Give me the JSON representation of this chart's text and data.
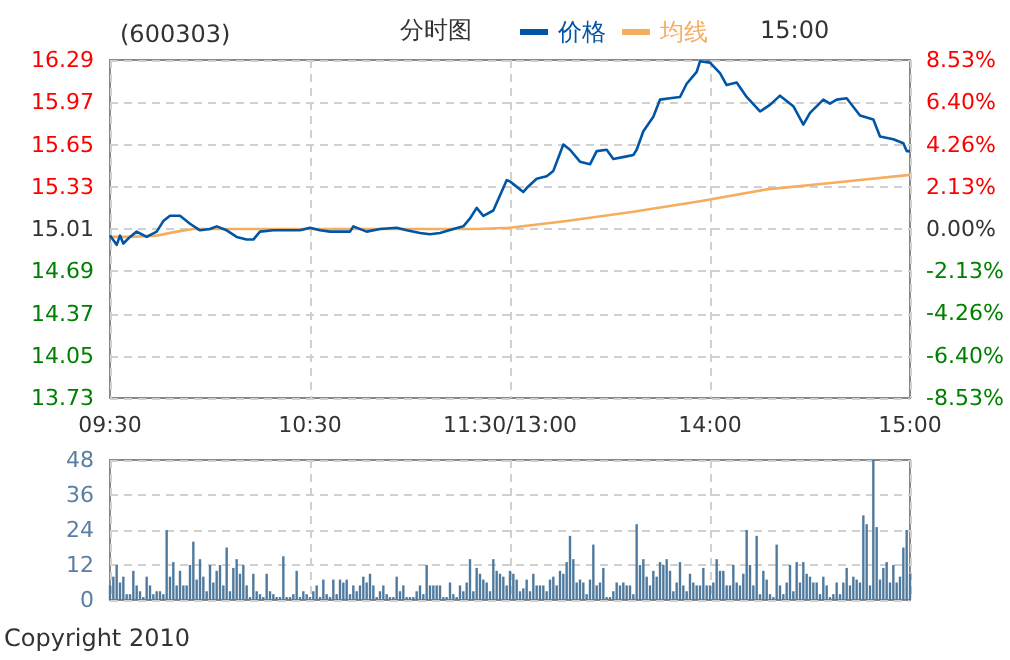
{
  "chart_data": [
    {
      "type": "line",
      "title": "(600303)",
      "annotations": [
        "分时图",
        "15:00"
      ],
      "legend": "top",
      "grid": true,
      "categories": [
        "09:30",
        null,
        null,
        null,
        null,
        null,
        null,
        null,
        null,
        null,
        null,
        null,
        null,
        null,
        null,
        null,
        null,
        null,
        null,
        null,
        null,
        null,
        null,
        null,
        null,
        null,
        null,
        null,
        null,
        null,
        null,
        null,
        null,
        null,
        null,
        null,
        null,
        null,
        null,
        null,
        null,
        null,
        null,
        null,
        null,
        null,
        null,
        null,
        null,
        null,
        null,
        null,
        null,
        null,
        null,
        null,
        null,
        null,
        null,
        null,
        "10:30",
        null,
        null,
        null,
        null,
        null,
        null,
        null,
        null,
        null,
        null,
        null,
        null,
        null,
        null,
        null,
        null,
        null,
        null,
        null,
        null,
        null,
        null,
        null,
        null,
        null,
        null,
        null,
        null,
        null,
        null,
        null,
        null,
        null,
        null,
        null,
        null,
        null,
        null,
        null,
        null,
        null,
        null,
        null,
        null,
        null,
        null,
        null,
        null,
        null,
        null,
        null,
        null,
        null,
        null,
        null,
        null,
        null,
        null,
        null,
        "11:30/13:00",
        null,
        null,
        null,
        null,
        null,
        null,
        null,
        null,
        null,
        null,
        null,
        null,
        null,
        null,
        null,
        null,
        null,
        null,
        null,
        null,
        null,
        null,
        null,
        null,
        null,
        null,
        null,
        null,
        null,
        null,
        null,
        null,
        null,
        null,
        null,
        null,
        null,
        null,
        null,
        null,
        null,
        null,
        null,
        null,
        null,
        null,
        null,
        null,
        null,
        null,
        null,
        null,
        null,
        null,
        null,
        null,
        null,
        null,
        null,
        "14:00",
        null,
        null,
        null,
        null,
        null,
        null,
        null,
        null,
        null,
        null,
        null,
        null,
        null,
        null,
        null,
        null,
        null,
        null,
        null,
        null,
        null,
        null,
        null,
        null,
        null,
        null,
        null,
        null,
        null,
        null,
        null,
        null,
        null,
        null,
        null,
        null,
        null,
        null,
        null,
        null,
        null,
        null,
        null,
        null,
        null,
        null,
        null,
        null,
        null,
        null,
        null,
        null,
        null,
        null,
        null,
        null,
        null,
        null,
        null,
        "15:00"
      ],
      "ylim": [
        13.73,
        16.29
      ],
      "yticks": [
        13.73,
        14.05,
        14.37,
        14.69,
        15.01,
        15.33,
        15.65,
        15.97,
        16.29
      ],
      "y2lim": [
        -8.53,
        8.53
      ],
      "y2ticks": [
        {
          "value": -8.53,
          "label": "-8.53%"
        },
        {
          "value": -6.4,
          "label": "-6.40%"
        },
        {
          "value": -4.26,
          "label": "-4.26%"
        },
        {
          "value": -2.13,
          "label": "-2.13%"
        },
        {
          "value": 0,
          "label": "0.00%"
        },
        {
          "value": 2.13,
          "label": "2.13%"
        },
        {
          "value": 4.26,
          "label": "4.26%"
        },
        {
          "value": 6.4,
          "label": "6.40%"
        },
        {
          "value": 8.53,
          "label": "8.53%"
        }
      ],
      "series": [
        {
          "name": "价格",
          "color": "#0055a5",
          "values": [
            14.96,
            null,
            14.89,
            14.96,
            14.9,
            null,
            14.95,
            null,
            14.99,
            null,
            null,
            14.95,
            null,
            null,
            14.99,
            null,
            15.07,
            null,
            15.11,
            null,
            null,
            15.11,
            null,
            null,
            15.05,
            null,
            null,
            15.0,
            null,
            null,
            15.01,
            null,
            15.03,
            null,
            null,
            15.0,
            null,
            null,
            14.95,
            null,
            null,
            14.93,
            null,
            14.93,
            null,
            14.99,
            null,
            null,
            null,
            15.0,
            null,
            null,
            null,
            null,
            null,
            null,
            null,
            15.0,
            null,
            null,
            15.02,
            null,
            null,
            15.0,
            null,
            null,
            14.99,
            null,
            null,
            null,
            null,
            null,
            14.99,
            15.03,
            null,
            null,
            null,
            14.99,
            null,
            null,
            null,
            15.01,
            null,
            null,
            null,
            null,
            15.02,
            null,
            null,
            15.0,
            null,
            null,
            null,
            14.98,
            null,
            null,
            14.97,
            null,
            null,
            14.98,
            null,
            null,
            null,
            15.01,
            null,
            null,
            15.03,
            null,
            15.09,
            null,
            15.17,
            null,
            15.11,
            null,
            null,
            15.15,
            null,
            null,
            null,
            15.38,
            15.37,
            15.35,
            null,
            null,
            15.29,
            15.32,
            null,
            null,
            15.39,
            null,
            null,
            15.41,
            null,
            15.45,
            null,
            null,
            15.65,
            null,
            15.61,
            null,
            null,
            15.52,
            null,
            null,
            15.5,
            null,
            15.6,
            null,
            null,
            15.61,
            null,
            15.54,
            null,
            null,
            null,
            15.56,
            null,
            15.57,
            15.61,
            null,
            15.75,
            null,
            null,
            15.86,
            null,
            15.99,
            null,
            null,
            16.0,
            null,
            null,
            16.01,
            null,
            16.11,
            null,
            null,
            16.2,
            16.28,
            null,
            null,
            16.27,
            null,
            null,
            16.19,
            null,
            16.1,
            null,
            null,
            16.12,
            null,
            null,
            16.01,
            null,
            null,
            null,
            15.9,
            null,
            null,
            15.95,
            null,
            null,
            16.02,
            null,
            null,
            null,
            15.94,
            null,
            null,
            15.8,
            null,
            15.89,
            null,
            null,
            null,
            15.99,
            null,
            15.96,
            null,
            15.99,
            null,
            null,
            16.0,
            null,
            null,
            null,
            15.87,
            null,
            null,
            null,
            15.84,
            null,
            15.71,
            null,
            null,
            null,
            15.69,
            null,
            null,
            15.66,
            15.6,
            15.6
          ]
        },
        {
          "name": "均线",
          "color": "#f5ad5f",
          "values": [
            14.95,
            null,
            null,
            null,
            null,
            null,
            14.95,
            null,
            null,
            null,
            null,
            null,
            null,
            null,
            14.96,
            null,
            null,
            null,
            null,
            null,
            14.99,
            null,
            null,
            null,
            null,
            15.01,
            null,
            null,
            null,
            null,
            null,
            null,
            null,
            null,
            null,
            null,
            null,
            null,
            null,
            null,
            null,
            null,
            null,
            null,
            null,
            null,
            null,
            null,
            null,
            null,
            null,
            null,
            null,
            null,
            null,
            null,
            null,
            null,
            null,
            null,
            15.01,
            null,
            null,
            null,
            null,
            null,
            null,
            null,
            null,
            null,
            null,
            null,
            null,
            null,
            null,
            null,
            null,
            null,
            null,
            null,
            null,
            null,
            null,
            null,
            null,
            null,
            null,
            null,
            null,
            null,
            15.01,
            null,
            null,
            null,
            null,
            null,
            null,
            null,
            null,
            null,
            null,
            null,
            null,
            null,
            null,
            null,
            null,
            null,
            null,
            null,
            15.01,
            null,
            null,
            null,
            null,
            null,
            null,
            null,
            null,
            null,
            15.02,
            null,
            null,
            null,
            null,
            null,
            null,
            null,
            null,
            null,
            null,
            null,
            null,
            null,
            null,
            null,
            null,
            15.07,
            null,
            null,
            null,
            null,
            null,
            null,
            null,
            null,
            null,
            null,
            null,
            null,
            null,
            null,
            null,
            null,
            null,
            null,
            null,
            15.14,
            null,
            null,
            null,
            null,
            null,
            null,
            null,
            null,
            null,
            null,
            null,
            null,
            null,
            null,
            null,
            null,
            null,
            null,
            null,
            15.22,
            null,
            null,
            null,
            null,
            null,
            null,
            null,
            null,
            null,
            null,
            null,
            null,
            null,
            null,
            null,
            null,
            null,
            null,
            null,
            15.31,
            null,
            null,
            null,
            null,
            null,
            null,
            null,
            null,
            null,
            null,
            null,
            null,
            null,
            null,
            null,
            null,
            null,
            null,
            null,
            15.36,
            null,
            null,
            null,
            null,
            null,
            null,
            null,
            null,
            null,
            null,
            null,
            null,
            null,
            null,
            null,
            null,
            null,
            null,
            null,
            null,
            null,
            null,
            15.42
          ]
        }
      ]
    },
    {
      "type": "bar",
      "annotations": [
        "Copyright 2010"
      ],
      "grid": true,
      "tick_labels": "y",
      "color": "#4f7a9e",
      "categories": [
        null,
        null,
        null,
        null,
        null,
        null,
        null,
        null,
        null,
        null,
        null,
        null,
        null,
        null,
        null,
        null,
        null,
        null,
        null,
        null,
        null,
        null,
        null,
        null,
        null,
        null,
        null,
        null,
        null,
        null,
        null,
        null,
        null,
        null,
        null,
        null,
        null,
        null,
        null,
        null,
        null,
        null,
        null,
        null,
        null,
        null,
        null,
        null,
        null,
        null,
        null,
        null,
        null,
        null,
        null,
        null,
        null,
        null,
        null,
        null,
        null,
        null,
        null,
        null,
        null,
        null,
        null,
        null,
        null,
        null,
        null,
        null,
        null,
        null,
        null,
        null,
        null,
        null,
        null,
        null,
        null,
        null,
        null,
        null,
        null,
        null,
        null,
        null,
        null,
        null,
        null,
        null,
        null,
        null,
        null,
        null,
        null,
        null,
        null,
        null,
        null,
        null,
        null,
        null,
        null,
        null,
        null,
        null,
        null,
        null,
        null,
        null,
        null,
        null,
        null,
        null,
        null,
        null,
        null,
        null,
        null,
        null,
        null,
        null,
        null,
        null,
        null,
        null,
        null,
        null,
        null,
        null,
        null,
        null,
        null,
        null,
        null,
        null,
        null,
        null,
        null,
        null,
        null,
        null,
        null,
        null,
        null,
        null,
        null,
        null,
        null,
        null,
        null,
        null,
        null,
        null,
        null,
        null,
        null,
        null,
        null,
        null,
        null,
        null,
        null,
        null,
        null,
        null,
        null,
        null,
        null,
        null,
        null,
        null,
        null,
        null,
        null,
        null,
        null,
        null,
        null,
        null,
        null,
        null,
        null,
        null,
        null,
        null,
        null,
        null,
        null,
        null,
        null,
        null,
        null,
        null,
        null,
        null,
        null,
        null,
        null,
        null,
        null,
        null,
        null,
        null,
        null,
        null,
        null,
        null,
        null,
        null,
        null,
        null,
        null,
        null,
        null,
        null,
        null,
        null,
        null,
        null,
        null,
        null,
        null,
        null,
        null,
        null,
        null,
        null,
        null,
        null,
        null,
        null,
        null,
        null,
        null,
        null,
        null,
        null,
        null
      ],
      "ylim": [
        0,
        48
      ],
      "yticks": [
        0,
        12,
        24,
        36,
        48
      ],
      "values": [
        5,
        8,
        12,
        6,
        8,
        2,
        2,
        10,
        5,
        3,
        1,
        8,
        5,
        2,
        3,
        3,
        2,
        24,
        8,
        13,
        5,
        10,
        5,
        5,
        12,
        20,
        7,
        14,
        8,
        3,
        12,
        6,
        10,
        12,
        5,
        18,
        3,
        11,
        14,
        9,
        12,
        5,
        1,
        9,
        3,
        2,
        1,
        9,
        3,
        2,
        1,
        1,
        15,
        1,
        1,
        2,
        10,
        1,
        3,
        2,
        1,
        3,
        5,
        1,
        7,
        2,
        1,
        7,
        2,
        7,
        6,
        7,
        2,
        5,
        3,
        5,
        8,
        6,
        9,
        5,
        1,
        3,
        5,
        2,
        1,
        1,
        8,
        3,
        5,
        1,
        1,
        1,
        3,
        5,
        2,
        12,
        5,
        5,
        5,
        5,
        1,
        1,
        6,
        2,
        1,
        5,
        3,
        6,
        14,
        3,
        11,
        9,
        7,
        6,
        3,
        14,
        10,
        9,
        8,
        5,
        10,
        9,
        7,
        3,
        4,
        7,
        3,
        9,
        5,
        5,
        5,
        3,
        7,
        8,
        5,
        10,
        9,
        13,
        22,
        14,
        6,
        7,
        6,
        2,
        7,
        19,
        5,
        6,
        11,
        1,
        1,
        3,
        6,
        5,
        6,
        5,
        5,
        2,
        26,
        12,
        14,
        8,
        5,
        10,
        8,
        13,
        12,
        14,
        10,
        3,
        6,
        13,
        5,
        3,
        9,
        6,
        5,
        5,
        11,
        5,
        5,
        6,
        14,
        10,
        10,
        5,
        5,
        12,
        6,
        5,
        9,
        24,
        12,
        5,
        22,
        2,
        10,
        7,
        2,
        1,
        19,
        5,
        2,
        6,
        12,
        3,
        13,
        6,
        13,
        9,
        8,
        6,
        6,
        2,
        8,
        5,
        1,
        2,
        6,
        2,
        6,
        11,
        5,
        8,
        7,
        6,
        29,
        26,
        5,
        48,
        25,
        7,
        11,
        13,
        6,
        12,
        6,
        8,
        18,
        24,
        9
      ]
    }
  ]
}
